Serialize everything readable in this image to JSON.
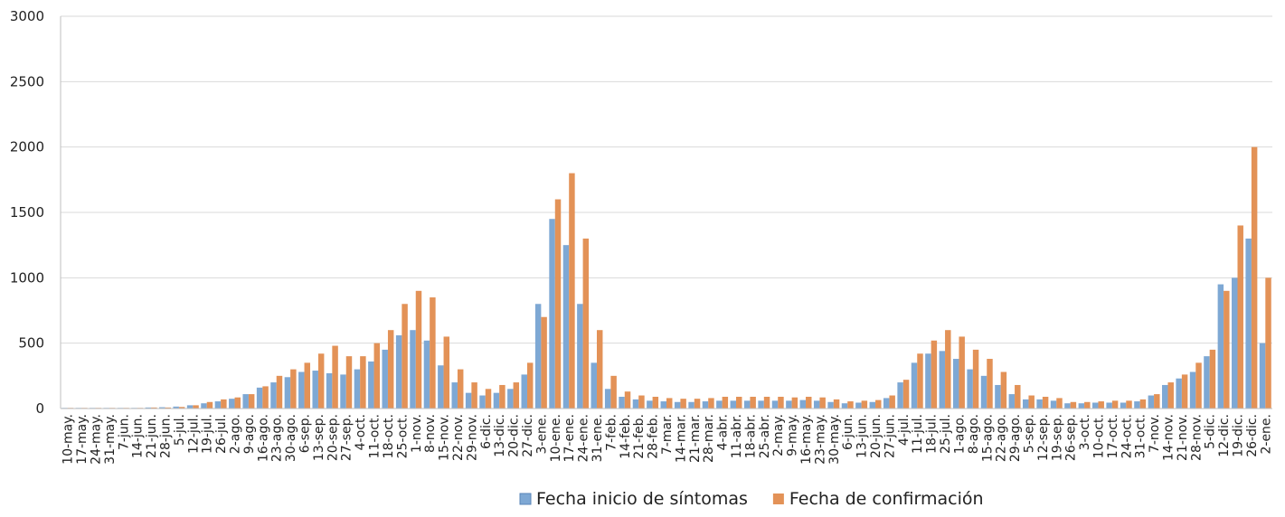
{
  "chart_data": {
    "type": "bar",
    "categories": [
      "10-may.",
      "17-may.",
      "24-may.",
      "31-may.",
      "7-jun.",
      "14-jun.",
      "21-jun.",
      "28-jun.",
      "5-jul.",
      "12-jul.",
      "19-jul.",
      "26-jul.",
      "2-ago.",
      "9-ago.",
      "16-ago.",
      "23-ago.",
      "30-ago.",
      "6-sep.",
      "13-sep.",
      "20-sep.",
      "27-sep.",
      "4-oct.",
      "11-oct.",
      "18-oct.",
      "25-oct.",
      "1-nov.",
      "8-nov.",
      "15-nov.",
      "22-nov.",
      "29-nov.",
      "6-dic.",
      "13-dic.",
      "20-dic.",
      "27-dic.",
      "3-ene.",
      "10-ene.",
      "17-ene.",
      "24-ene.",
      "31-ene.",
      "7-feb.",
      "14-feb.",
      "21-feb.",
      "28-feb.",
      "7-mar.",
      "14-mar.",
      "21-mar.",
      "28-mar.",
      "4-abr.",
      "11-abr.",
      "18-abr.",
      "25-abr.",
      "2-may.",
      "9-may.",
      "16-may.",
      "23-may.",
      "30-may.",
      "6-jun.",
      "13-jun.",
      "20-jun.",
      "27-jun.",
      "4-jul.",
      "11-jul.",
      "18-jul.",
      "25-jul.",
      "1-ago.",
      "8-ago.",
      "15-ago.",
      "22-ago.",
      "29-ago.",
      "5-sep.",
      "12-sep.",
      "19-sep.",
      "26-sep.",
      "3-oct.",
      "10-oct.",
      "17-oct.",
      "24-oct.",
      "31-oct.",
      "7-nov.",
      "14-nov.",
      "21-nov.",
      "28-nov.",
      "5-dic.",
      "12-dic.",
      "19-dic.",
      "26-dic.",
      "2-ene."
    ],
    "series": [
      {
        "name": "Fecha inicio de síntomas",
        "color": "#7ea8d4",
        "values": [
          5,
          5,
          5,
          5,
          5,
          5,
          8,
          10,
          15,
          25,
          40,
          55,
          75,
          110,
          160,
          200,
          240,
          280,
          290,
          270,
          260,
          300,
          360,
          450,
          560,
          600,
          520,
          330,
          200,
          120,
          100,
          120,
          150,
          260,
          800,
          1450,
          1250,
          800,
          350,
          150,
          90,
          70,
          60,
          55,
          50,
          50,
          55,
          60,
          60,
          60,
          60,
          60,
          60,
          65,
          60,
          50,
          40,
          45,
          50,
          80,
          200,
          350,
          420,
          440,
          380,
          300,
          250,
          180,
          110,
          70,
          70,
          60,
          40,
          40,
          45,
          45,
          45,
          55,
          100,
          180,
          230,
          280,
          400,
          950,
          1000,
          1300,
          500
        ]
      },
      {
        "name": "Fecha de confirmación",
        "color": "#e39257",
        "values": [
          5,
          5,
          5,
          5,
          5,
          5,
          8,
          8,
          12,
          25,
          50,
          70,
          85,
          110,
          170,
          250,
          300,
          350,
          420,
          480,
          400,
          400,
          500,
          600,
          800,
          900,
          850,
          550,
          300,
          200,
          150,
          180,
          200,
          350,
          700,
          1600,
          1800,
          1300,
          600,
          250,
          130,
          100,
          90,
          80,
          75,
          75,
          80,
          90,
          90,
          90,
          90,
          90,
          85,
          90,
          85,
          70,
          55,
          60,
          65,
          100,
          220,
          420,
          520,
          600,
          550,
          450,
          380,
          280,
          180,
          100,
          90,
          80,
          50,
          50,
          55,
          60,
          60,
          70,
          110,
          200,
          260,
          350,
          450,
          900,
          1400,
          2000,
          1000
        ]
      }
    ],
    "ylim": [
      0,
      3000
    ],
    "yticks": [
      0,
      500,
      1000,
      1500,
      2000,
      2500,
      3000
    ],
    "grid": true,
    "legend": "bottom"
  }
}
